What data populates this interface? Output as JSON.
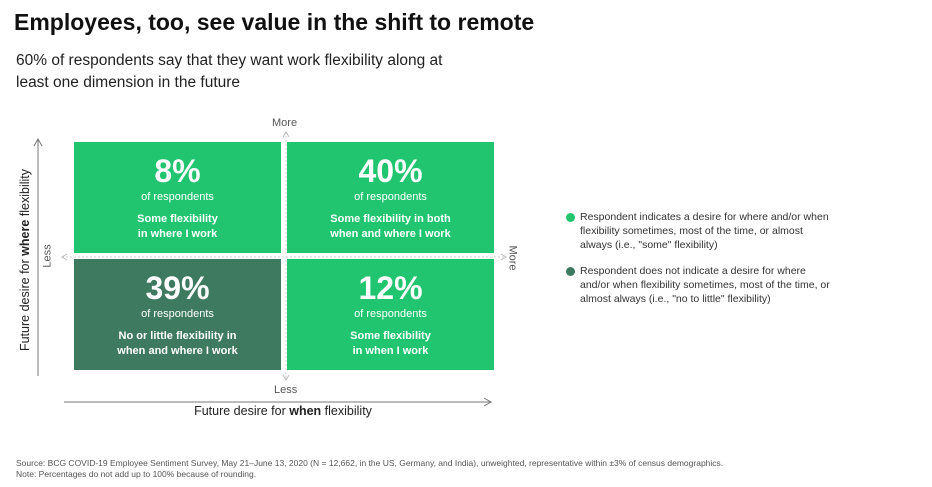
{
  "title": "Employees, too, see value in the shift to remote",
  "subtitle": "60% of respondents say that they want work flexibility along at least one dimension in the future",
  "colors": {
    "some": "#21c46f",
    "none": "#3d7a5f",
    "axis": "#777777"
  },
  "chart_data": {
    "type": "table",
    "x_axis": {
      "label_pre": "Future desire for ",
      "label_bold": "when",
      "label_post": " flexibility",
      "low": "Less",
      "high": "More"
    },
    "y_axis": {
      "label_pre": "Future desire for ",
      "label_bold": "where",
      "label_post": " flexibility",
      "low": "Less",
      "high": "More"
    },
    "quadrants": [
      {
        "id": "top-left",
        "where": "More",
        "when": "Less",
        "percent": 8,
        "value": "8%",
        "sub": "of respondents",
        "line1": "Some flexibility",
        "line2": "in where I work",
        "category": "some"
      },
      {
        "id": "top-right",
        "where": "More",
        "when": "More",
        "percent": 40,
        "value": "40%",
        "sub": "of respondents",
        "line1": "Some flexibility in both",
        "line2": "when and where I work",
        "category": "some"
      },
      {
        "id": "bottom-left",
        "where": "Less",
        "when": "Less",
        "percent": 39,
        "value": "39%",
        "sub": "of respondents",
        "line1": "No or little flexibility in",
        "line2": "when and where I work",
        "category": "none"
      },
      {
        "id": "bottom-right",
        "where": "Less",
        "when": "More",
        "percent": 12,
        "value": "12%",
        "sub": "of respondents",
        "line1": "Some flexibility",
        "line2": "in when I work",
        "category": "some"
      }
    ]
  },
  "legend": [
    {
      "text": "Respondent indicates a desire for where and/or when flexibility sometimes, most of the time, or almost always (i.e., \"some\" flexibility)"
    },
    {
      "text": "Respondent does not indicate a desire for where and/or when flexibility sometimes, most of the time, or almost always (i.e., \"no to little\" flexibility)"
    }
  ],
  "footnote": {
    "source": "Source: BCG COVID-19 Employee Sentiment Survey, May 21–June 13, 2020  (N = 12,662, in the US, Germany, and India), unweighted, representative within ±3% of census demographics.",
    "note": "Note: Percentages do not add up to 100% because of rounding."
  }
}
